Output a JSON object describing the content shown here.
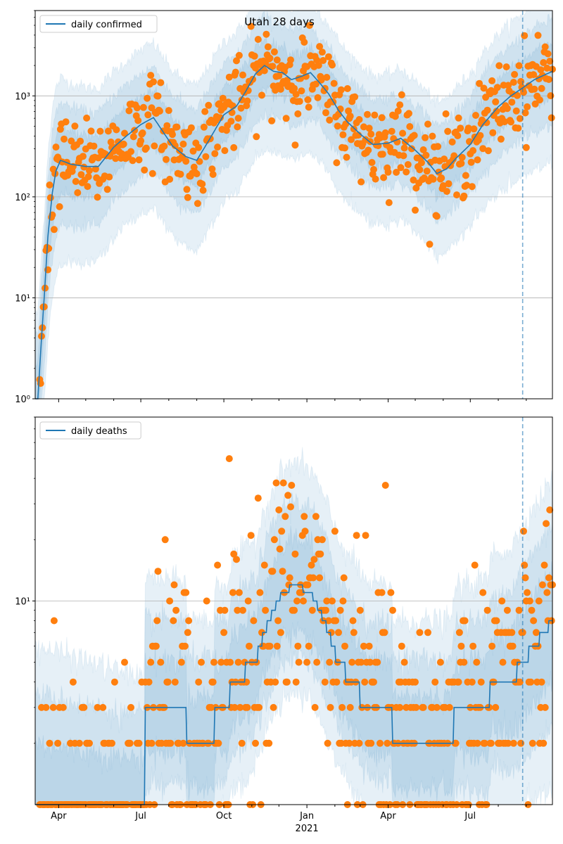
{
  "figure": {
    "title": "Utah 28 days"
  },
  "colors": {
    "line": "#1f77b4",
    "band": "#1f77b4",
    "points": "#ff7f0e",
    "grid": "#b0b0b0",
    "vline": "#1f77b4"
  },
  "chart_data": [
    {
      "type": "line",
      "scale": "log",
      "legend": "daily confirmed",
      "legend_position": "top-left",
      "ylim": [
        1,
        7000
      ],
      "yticks": [
        {
          "value": 1,
          "label": "10⁰"
        },
        {
          "value": 10,
          "label": "10¹"
        },
        {
          "value": 100,
          "label": "10²"
        },
        {
          "value": 1000,
          "label": "10³"
        }
      ],
      "grid": "y-major",
      "xlim": [
        "2020-03-06",
        "2021-09-30"
      ],
      "forecast_start": "2021-08-28",
      "median": [
        [
          "2020-03-06",
          1
        ],
        [
          "2020-03-09",
          1
        ],
        [
          "2020-03-11",
          2
        ],
        [
          "2020-03-13",
          4
        ],
        [
          "2020-03-16",
          10
        ],
        [
          "2020-03-20",
          40
        ],
        [
          "2020-03-25",
          110
        ],
        [
          "2020-03-29",
          180
        ],
        [
          "2020-04-03",
          230
        ],
        [
          "2020-04-15",
          210
        ],
        [
          "2020-05-01",
          200
        ],
        [
          "2020-05-15",
          200
        ],
        [
          "2020-06-01",
          310
        ],
        [
          "2020-06-15",
          400
        ],
        [
          "2020-07-01",
          520
        ],
        [
          "2020-07-15",
          610
        ],
        [
          "2020-07-25",
          450
        ],
        [
          "2020-08-05",
          320
        ],
        [
          "2020-08-20",
          250
        ],
        [
          "2020-09-01",
          230
        ],
        [
          "2020-09-15",
          370
        ],
        [
          "2020-10-01",
          650
        ],
        [
          "2020-10-15",
          790
        ],
        [
          "2020-10-25",
          1100
        ],
        [
          "2020-11-05",
          1650
        ],
        [
          "2020-11-15",
          2000
        ],
        [
          "2020-11-25",
          1750
        ],
        [
          "2020-12-05",
          1700
        ],
        [
          "2020-12-15",
          1450
        ],
        [
          "2020-12-25",
          1550
        ],
        [
          "2021-01-05",
          1700
        ],
        [
          "2021-01-15",
          1350
        ],
        [
          "2021-01-25",
          1050
        ],
        [
          "2021-02-05",
          720
        ],
        [
          "2021-02-15",
          550
        ],
        [
          "2021-03-01",
          420
        ],
        [
          "2021-03-15",
          330
        ],
        [
          "2021-04-01",
          340
        ],
        [
          "2021-04-15",
          380
        ],
        [
          "2021-05-01",
          290
        ],
        [
          "2021-05-15",
          220
        ],
        [
          "2021-05-25",
          170
        ],
        [
          "2021-06-05",
          190
        ],
        [
          "2021-06-15",
          240
        ],
        [
          "2021-07-01",
          330
        ],
        [
          "2021-07-15",
          520
        ],
        [
          "2021-08-01",
          780
        ],
        [
          "2021-08-15",
          1000
        ],
        [
          "2021-08-28",
          1200
        ],
        [
          "2021-09-10",
          1450
        ],
        [
          "2021-09-30",
          1750
        ]
      ],
      "bands": [
        {
          "lower": [
            0.45,
            0.55,
            0.55,
            0.6,
            0.62,
            0.58,
            0.56
          ],
          "upper": [
            2.2,
            1.9,
            1.9,
            1.8,
            1.7,
            1.8,
            1.9
          ]
        },
        {
          "lower": [
            0.2,
            0.3,
            0.3,
            0.35,
            0.37,
            0.33,
            0.3
          ],
          "upper": [
            4.0,
            3.2,
            3.2,
            3.0,
            2.8,
            3.0,
            3.3
          ]
        },
        {
          "lower": [
            0.08,
            0.13,
            0.13,
            0.16,
            0.16,
            0.15,
            0.12
          ],
          "upper": [
            7.0,
            5.5,
            5.5,
            5.0,
            4.8,
            5.0,
            5.6
          ]
        }
      ],
      "observed_scatter": 0.35
    },
    {
      "type": "line",
      "scale": "log",
      "legend": "daily deaths",
      "legend_position": "top-left",
      "ylim": [
        1,
        80
      ],
      "yticks": [
        {
          "value": 10,
          "label": "10¹"
        }
      ],
      "grid": "y-major",
      "xlim": [
        "2020-03-06",
        "2021-09-30"
      ],
      "forecast_start": "2021-08-28",
      "xticks": [
        {
          "date": "2020-04-01",
          "label": "Apr"
        },
        {
          "date": "2020-07-01",
          "label": "Jul"
        },
        {
          "date": "2020-10-01",
          "label": "Oct"
        },
        {
          "date": "2021-01-01",
          "label": "Jan"
        },
        {
          "date": "2021-04-01",
          "label": "Apr"
        },
        {
          "date": "2021-07-01",
          "label": "Jul"
        }
      ],
      "year_label": {
        "date": "2021-01-01",
        "label": "2021"
      },
      "median": [
        [
          "2020-03-06",
          1
        ],
        [
          "2020-07-05",
          1
        ],
        [
          "2020-07-06",
          3
        ],
        [
          "2020-08-20",
          3
        ],
        [
          "2020-08-21",
          2
        ],
        [
          "2020-09-20",
          2
        ],
        [
          "2020-09-21",
          3
        ],
        [
          "2020-10-05",
          3
        ],
        [
          "2020-10-10",
          4
        ],
        [
          "2020-10-25",
          4.5
        ],
        [
          "2020-11-05",
          5
        ],
        [
          "2020-11-15",
          7
        ],
        [
          "2020-11-25",
          9
        ],
        [
          "2020-12-05",
          11
        ],
        [
          "2020-12-20",
          12
        ],
        [
          "2021-01-05",
          11
        ],
        [
          "2021-01-15",
          9
        ],
        [
          "2021-01-25",
          7
        ],
        [
          "2021-02-05",
          5
        ],
        [
          "2021-02-20",
          4
        ],
        [
          "2021-03-10",
          3
        ],
        [
          "2021-04-05",
          3
        ],
        [
          "2021-04-06",
          2
        ],
        [
          "2021-05-10",
          2
        ],
        [
          "2021-06-10",
          2
        ],
        [
          "2021-06-15",
          3
        ],
        [
          "2021-07-20",
          3
        ],
        [
          "2021-07-25",
          4
        ],
        [
          "2021-08-15",
          4
        ],
        [
          "2021-08-28",
          5
        ],
        [
          "2021-09-10",
          6
        ],
        [
          "2021-09-30",
          8
        ]
      ],
      "bands": [
        {
          "lower": [
            0.5,
            0.6,
            0.6,
            0.6,
            0.6,
            0.6,
            0.5
          ],
          "upper": [
            2.0,
            1.7,
            1.7,
            1.7,
            1.7,
            1.7,
            1.8
          ]
        },
        {
          "lower": [
            0.3,
            0.4,
            0.45,
            0.45,
            0.45,
            0.4,
            0.3
          ],
          "upper": [
            3.5,
            2.8,
            2.6,
            2.6,
            2.6,
            2.6,
            3.0
          ]
        },
        {
          "lower": [
            0.15,
            0.25,
            0.3,
            0.3,
            0.3,
            0.25,
            0.15
          ],
          "upper": [
            6.0,
            4.5,
            4.0,
            4.0,
            4.0,
            4.0,
            5.0
          ]
        }
      ],
      "observed_scatter": 0.55,
      "integer_values": true
    }
  ]
}
